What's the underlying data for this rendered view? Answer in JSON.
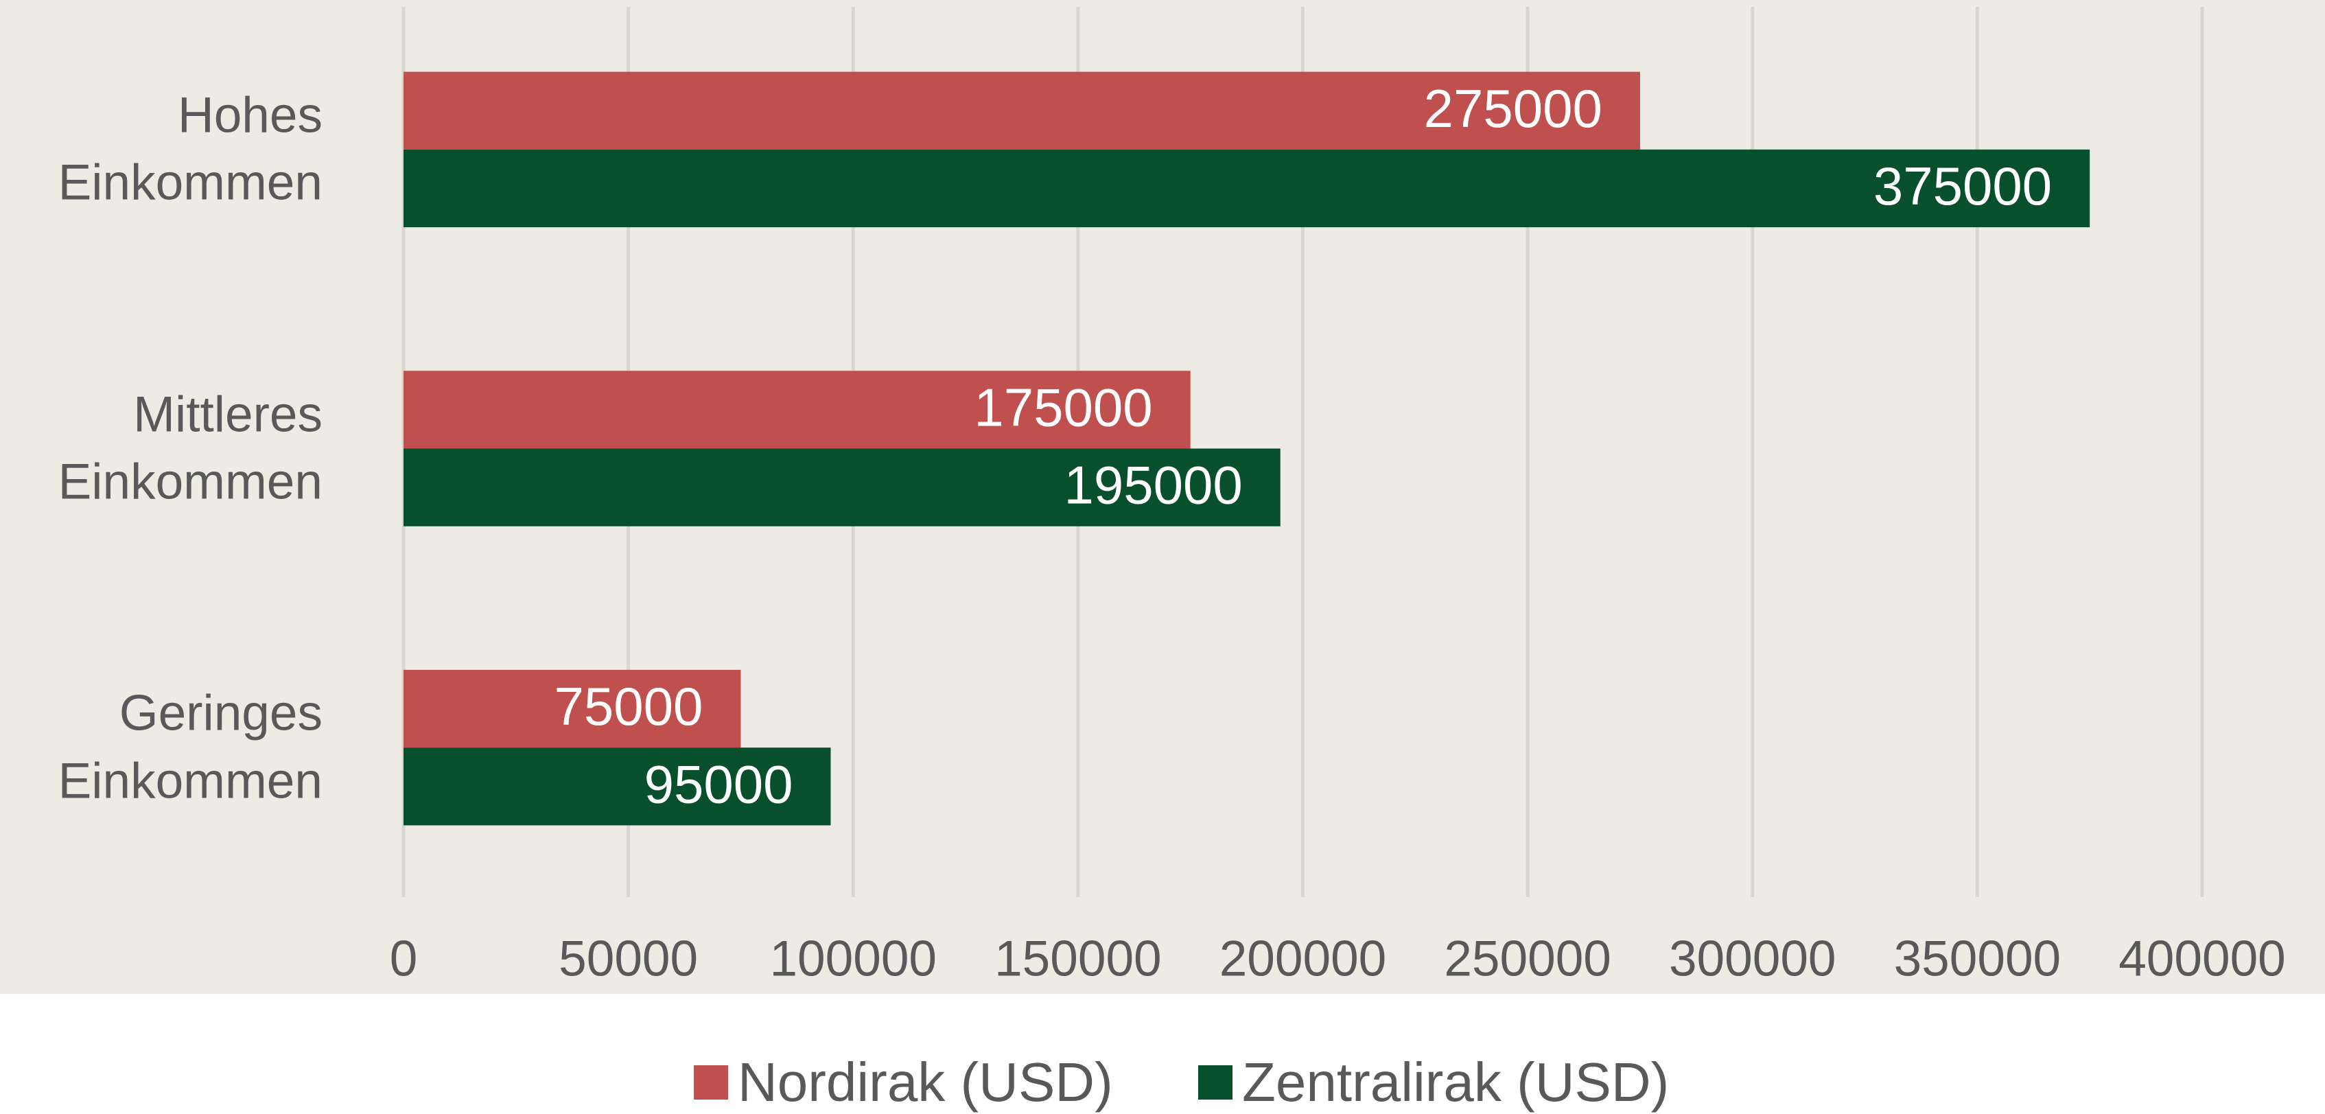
{
  "chart_data": {
    "type": "bar",
    "orientation": "horizontal",
    "categories": [
      "Hohes Einkommen",
      "Mittleres Einkommen",
      "Geringes Einkommen"
    ],
    "series": [
      {
        "name": "Nordirak (USD)",
        "color": "#c0504d",
        "values": [
          275000,
          175000,
          75000
        ]
      },
      {
        "name": "Zentralirak (USD)",
        "color": "#08502b",
        "values": [
          375000,
          195000,
          95000
        ]
      }
    ],
    "xlim": [
      0,
      400000
    ],
    "xticks": [
      0,
      50000,
      100000,
      150000,
      200000,
      250000,
      300000,
      350000,
      400000
    ],
    "grid": true,
    "legend": "bottom"
  }
}
